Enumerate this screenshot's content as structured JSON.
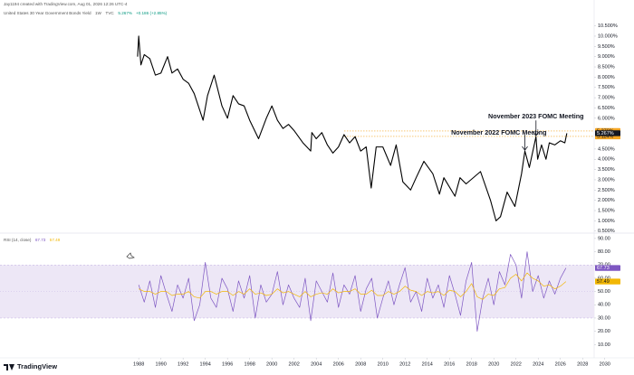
{
  "header": "Jay1194 created with TradingView.com, Aug 01, 2026 12:26 UTC-4",
  "brand": "TradingView",
  "chart_data": [
    {
      "type": "line",
      "title": "United States 30 Year Government Bonds Yield",
      "interval": "1W",
      "source": "TVC",
      "last_value": {
        "value": 5.267,
        "label": "5.267%"
      },
      "change": "+0.186 (+2.85%)",
      "color": "#000000",
      "x": [
        1987.9,
        1988.0,
        1988.2,
        1988.5,
        1989.0,
        1989.5,
        1990.0,
        1990.6,
        1991.0,
        1991.5,
        1992.0,
        1992.5,
        1993.0,
        1993.8,
        1994.2,
        1994.8,
        1995.5,
        1996.0,
        1996.5,
        1997.0,
        1997.5,
        1998.0,
        1998.8,
        1999.5,
        2000.0,
        2000.5,
        2001.0,
        2001.5,
        2002.0,
        2002.8,
        2003.5,
        2003.6,
        2004.0,
        2004.5,
        2005.0,
        2005.5,
        2006.0,
        2006.5,
        2007.0,
        2007.5,
        2008.0,
        2008.5,
        2008.95,
        2009.4,
        2010.0,
        2010.7,
        2011.2,
        2011.8,
        2012.5,
        2013.0,
        2013.7,
        2014.5,
        2015.1,
        2015.5,
        2016.5,
        2016.95,
        2017.5,
        2018.8,
        2019.7,
        2020.2,
        2020.6,
        2021.2,
        2021.9,
        2022.5,
        2022.8,
        2023.2,
        2023.8,
        2023.95,
        2024.3,
        2024.7,
        2025.0,
        2025.5,
        2026.0,
        2026.4,
        2026.58
      ],
      "values": [
        9.0,
        10.0,
        8.6,
        9.1,
        8.9,
        8.1,
        8.2,
        9.0,
        8.2,
        8.4,
        7.9,
        7.7,
        7.2,
        5.9,
        7.1,
        8.1,
        6.6,
        6.0,
        7.1,
        6.7,
        6.6,
        5.9,
        5.0,
        6.0,
        6.6,
        5.9,
        5.5,
        5.7,
        5.4,
        4.8,
        4.4,
        5.3,
        5.0,
        5.3,
        4.7,
        4.3,
        4.6,
        5.2,
        4.8,
        5.1,
        4.4,
        4.6,
        2.6,
        4.6,
        4.6,
        3.7,
        4.7,
        2.9,
        2.5,
        3.1,
        3.9,
        3.3,
        2.3,
        3.1,
        2.2,
        3.1,
        2.8,
        3.4,
        2.0,
        1.0,
        1.2,
        2.4,
        1.7,
        3.3,
        4.4,
        3.6,
        5.1,
        4.0,
        4.7,
        4.0,
        4.8,
        4.7,
        4.9,
        4.8,
        5.267
      ],
      "xlim": [
        1975.5,
        2031
      ],
      "xticks": [
        1988,
        1990,
        1992,
        1994,
        1996,
        1998,
        2000,
        2002,
        2004,
        2006,
        2008,
        2010,
        2012,
        2014,
        2016,
        2018,
        2020,
        2022,
        2024,
        2026,
        2028,
        2030
      ],
      "ylim": [
        0.4,
        11.1
      ],
      "yticks": [
        {
          "value": 10.5,
          "label": "10.500%"
        },
        {
          "value": 10,
          "label": "10.000%"
        },
        {
          "value": 9.5,
          "label": "9.500%"
        },
        {
          "value": 9,
          "label": "9.000%"
        },
        {
          "value": 8.5,
          "label": "8.500%"
        },
        {
          "value": 8,
          "label": "8.000%"
        },
        {
          "value": 7.5,
          "label": "7.500%"
        },
        {
          "value": 7,
          "label": "7.000%"
        },
        {
          "value": 6.5,
          "label": "6.500%"
        },
        {
          "value": 6,
          "label": "6.000%"
        },
        {
          "value": 4.5,
          "label": "4.500%"
        },
        {
          "value": 4,
          "label": "4.000%"
        },
        {
          "value": 3.5,
          "label": "3.500%"
        },
        {
          "value": 3,
          "label": "3.000%"
        },
        {
          "value": 2.5,
          "label": "2.500%"
        },
        {
          "value": 2,
          "label": "2.000%"
        },
        {
          "value": 1.5,
          "label": "1.500%"
        },
        {
          "value": 1,
          "label": "1.000%"
        },
        {
          "value": 0.5,
          "label": "0.500%"
        }
      ],
      "reference_lines": [
        {
          "value": 5.379,
          "label": "5.379%",
          "color": "#f5a623"
        },
        {
          "value": 5.114,
          "label": "5.114%",
          "color": "#f5a623"
        }
      ],
      "annotations": [
        {
          "text": "November 2023 FOMC Meeting",
          "x": 2023.8,
          "y": 5.1
        },
        {
          "text": "November 2022 FOMC Meeting",
          "x": 2022.8,
          "y": 4.4
        }
      ]
    },
    {
      "type": "line",
      "title": "RSI (14, close)",
      "x": [
        1988,
        1988.5,
        1989,
        1989.5,
        1990,
        1990.5,
        1991,
        1991.5,
        1992,
        1992.5,
        1993,
        1993.5,
        1994,
        1994.5,
        1995,
        1995.5,
        1996,
        1996.5,
        1997,
        1997.5,
        1998,
        1998.5,
        1999,
        1999.5,
        2000,
        2000.5,
        2001,
        2001.5,
        2002,
        2002.5,
        2003,
        2003.5,
        2004,
        2004.5,
        2005,
        2005.5,
        2006,
        2006.5,
        2007,
        2007.5,
        2008,
        2008.5,
        2009,
        2009.5,
        2010,
        2010.5,
        2011,
        2011.5,
        2012,
        2012.5,
        2013,
        2013.5,
        2014,
        2014.5,
        2015,
        2015.5,
        2016,
        2016.5,
        2017,
        2017.5,
        2018,
        2018.5,
        2019,
        2019.5,
        2020,
        2020.5,
        2021,
        2021.5,
        2022,
        2022.5,
        2023,
        2023.5,
        2024,
        2024.5,
        2025,
        2025.5,
        2026,
        2026.5
      ],
      "series": [
        {
          "color": "#7e57c2",
          "values": [
            55,
            42,
            58,
            38,
            62,
            48,
            35,
            55,
            45,
            60,
            28,
            40,
            72,
            45,
            38,
            60,
            52,
            35,
            58,
            45,
            62,
            30,
            55,
            42,
            48,
            65,
            40,
            55,
            45,
            38,
            60,
            28,
            58,
            50,
            42,
            64,
            38,
            55,
            48,
            62,
            35,
            52,
            60,
            30,
            45,
            58,
            40,
            55,
            68,
            42,
            50,
            35,
            60,
            45,
            55,
            38,
            62,
            48,
            32,
            58,
            72,
            20,
            45,
            60,
            40,
            65,
            55,
            78,
            70,
            45,
            80,
            50,
            62,
            45,
            58,
            48,
            60,
            67.73
          ]
        },
        {
          "color": "#f2b705",
          "values": [
            52,
            50,
            50,
            48,
            50,
            50,
            47,
            48,
            48,
            50,
            46,
            45,
            50,
            50,
            48,
            50,
            50,
            47,
            50,
            48,
            52,
            48,
            49,
            47,
            48,
            52,
            49,
            50,
            48,
            46,
            50,
            46,
            48,
            49,
            48,
            52,
            49,
            50,
            50,
            52,
            48,
            48,
            51,
            47,
            47,
            50,
            48,
            50,
            54,
            51,
            50,
            47,
            50,
            49,
            50,
            47,
            51,
            50,
            46,
            50,
            56,
            46,
            44,
            48,
            47,
            52,
            53,
            60,
            63,
            58,
            64,
            60,
            58,
            54,
            55,
            52,
            54,
            57.49
          ]
        }
      ],
      "band": {
        "from": 30,
        "to": 70,
        "color": "#ede7f6"
      },
      "ylim": [
        0,
        94
      ],
      "yticks": [
        {
          "value": 90,
          "label": "90.00"
        },
        {
          "value": 80,
          "label": "80.00"
        },
        {
          "value": 70,
          "label": "70.00"
        },
        {
          "value": 60,
          "label": "60.00"
        },
        {
          "value": 50,
          "label": "50.00"
        },
        {
          "value": 40,
          "label": "40.00"
        },
        {
          "value": 30,
          "label": "30.00"
        },
        {
          "value": 20,
          "label": "20.00"
        },
        {
          "value": 10,
          "label": "10.00"
        }
      ]
    }
  ]
}
